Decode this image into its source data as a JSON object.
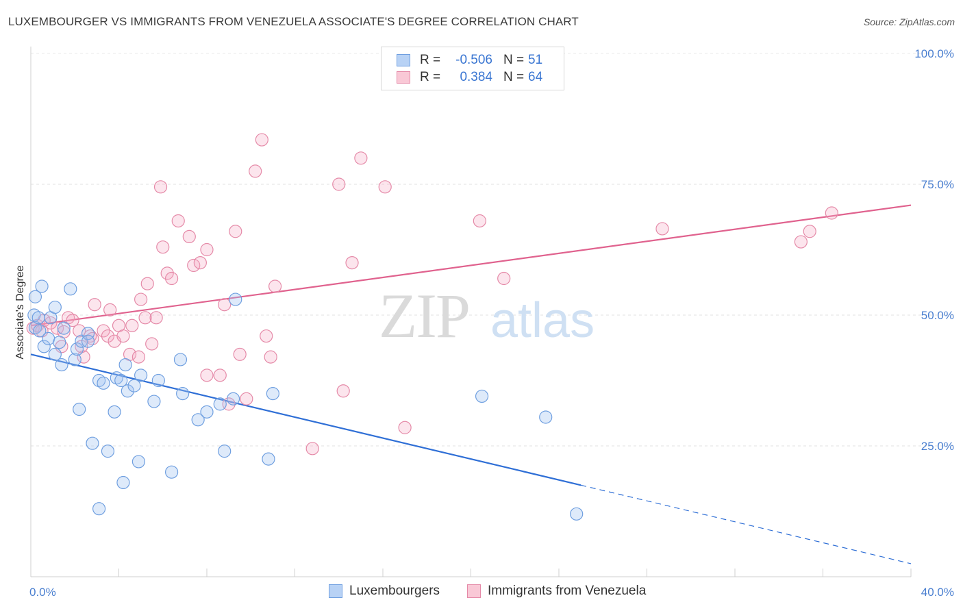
{
  "title": "LUXEMBOURGER VS IMMIGRANTS FROM VENEZUELA ASSOCIATE'S DEGREE CORRELATION CHART",
  "source": "Source: ZipAtlas.com",
  "watermark": {
    "zip": "ZIP",
    "atlas": "atlas"
  },
  "legend": {
    "r_label": "R =",
    "n_label": "N =",
    "rows": [
      {
        "r": "-0.506",
        "n": "51",
        "color": "#a9c8f2",
        "border": "#6f9fe0"
      },
      {
        "r": "0.384",
        "n": "64",
        "color": "#f7bfd0",
        "border": "#e58aa8"
      }
    ]
  },
  "bottom_legend": [
    {
      "label": "Luxembourgers",
      "color": "#b8d2f5",
      "border": "#6f9fe0"
    },
    {
      "label": "Immigrants from Venezuela",
      "color": "#f9c8d6",
      "border": "#e58aa8"
    }
  ],
  "chart_data": {
    "type": "scatter",
    "ylabel": "Associate's Degree",
    "xlim": [
      0,
      40
    ],
    "ylim": [
      0,
      100
    ],
    "x_tick_labels": [
      "0.0%",
      "40.0%"
    ],
    "y_tick_labels": [
      "100.0%",
      "75.0%",
      "50.0%",
      "25.0%"
    ],
    "y_tick_values": [
      100,
      75,
      50,
      25
    ],
    "grid": true,
    "colors": {
      "blue": "#2f6fd6",
      "pink": "#e0628e",
      "blue_fill": "rgba(160,195,240,0.35)",
      "pink_fill": "rgba(245,170,195,0.30)"
    },
    "series": [
      {
        "name": "Luxembourgers",
        "color": "blue",
        "points": [
          [
            0.2,
            47.6
          ],
          [
            0.2,
            53.5
          ],
          [
            0.5,
            55.5
          ],
          [
            0.4,
            47
          ],
          [
            0.6,
            44
          ],
          [
            0.8,
            45.5
          ],
          [
            0.9,
            49.5
          ],
          [
            1.1,
            51.5
          ],
          [
            1.1,
            42.5
          ],
          [
            1.4,
            40.5
          ],
          [
            1.5,
            47.5
          ],
          [
            1.8,
            55
          ],
          [
            2.0,
            41.5
          ],
          [
            2.1,
            43.5
          ],
          [
            2.3,
            45
          ],
          [
            2.6,
            46.5
          ],
          [
            2.6,
            45
          ],
          [
            2.2,
            32
          ],
          [
            2.8,
            25.5
          ],
          [
            3.1,
            37.5
          ],
          [
            3.3,
            37
          ],
          [
            3.5,
            24
          ],
          [
            3.8,
            31.5
          ],
          [
            3.9,
            38
          ],
          [
            4.1,
            37.5
          ],
          [
            4.2,
            18
          ],
          [
            4.3,
            40.5
          ],
          [
            4.4,
            35.5
          ],
          [
            4.7,
            36.5
          ],
          [
            5.0,
            38.5
          ],
          [
            4.9,
            22
          ],
          [
            3.1,
            13
          ],
          [
            5.6,
            33.5
          ],
          [
            5.8,
            37.5
          ],
          [
            6.4,
            20
          ],
          [
            6.8,
            41.5
          ],
          [
            6.9,
            35
          ],
          [
            7.6,
            30
          ],
          [
            8.0,
            31.5
          ],
          [
            8.6,
            33
          ],
          [
            8.8,
            24
          ],
          [
            9.2,
            34
          ],
          [
            9.3,
            53
          ],
          [
            10.8,
            22.5
          ],
          [
            11.0,
            35
          ],
          [
            20.5,
            34.5
          ],
          [
            23.4,
            30.5
          ],
          [
            24.8,
            12
          ],
          [
            0.15,
            50
          ],
          [
            0.35,
            49.5
          ],
          [
            1.3,
            44.8
          ]
        ]
      },
      {
        "name": "Immigrants from Venezuela",
        "color": "pink",
        "points": [
          [
            0.1,
            47.5
          ],
          [
            0.3,
            48
          ],
          [
            0.5,
            47
          ],
          [
            0.9,
            48.5
          ],
          [
            1.2,
            47.5
          ],
          [
            1.4,
            44
          ],
          [
            1.7,
            49.5
          ],
          [
            1.9,
            49
          ],
          [
            2.2,
            47
          ],
          [
            2.3,
            44
          ],
          [
            2.4,
            42
          ],
          [
            2.7,
            46
          ],
          [
            2.8,
            45.5
          ],
          [
            2.9,
            52
          ],
          [
            3.3,
            47
          ],
          [
            3.5,
            46
          ],
          [
            3.6,
            51
          ],
          [
            3.8,
            45
          ],
          [
            4.0,
            48
          ],
          [
            4.2,
            46
          ],
          [
            4.5,
            42.5
          ],
          [
            4.6,
            48
          ],
          [
            4.9,
            42
          ],
          [
            5.0,
            53
          ],
          [
            5.2,
            49.5
          ],
          [
            5.3,
            56
          ],
          [
            5.5,
            44.5
          ],
          [
            5.7,
            49.5
          ],
          [
            5.9,
            74.5
          ],
          [
            6.0,
            63
          ],
          [
            6.2,
            58
          ],
          [
            6.4,
            57
          ],
          [
            6.7,
            68
          ],
          [
            7.2,
            65
          ],
          [
            7.4,
            59.5
          ],
          [
            7.7,
            60
          ],
          [
            8.0,
            38.5
          ],
          [
            8.0,
            62.5
          ],
          [
            8.6,
            38.5
          ],
          [
            8.8,
            52
          ],
          [
            9.0,
            33
          ],
          [
            9.3,
            66
          ],
          [
            9.5,
            42.5
          ],
          [
            9.8,
            34
          ],
          [
            10.2,
            77.5
          ],
          [
            10.5,
            83.5
          ],
          [
            10.7,
            46
          ],
          [
            10.9,
            42
          ],
          [
            11.1,
            55.5
          ],
          [
            12.8,
            24.5
          ],
          [
            14.0,
            75
          ],
          [
            14.2,
            35.5
          ],
          [
            14.6,
            60
          ],
          [
            15.0,
            80
          ],
          [
            16.1,
            74.5
          ],
          [
            17.0,
            28.5
          ],
          [
            20.4,
            68
          ],
          [
            21.5,
            57
          ],
          [
            28.7,
            66.5
          ],
          [
            35.0,
            64
          ],
          [
            35.4,
            66
          ],
          [
            36.4,
            69.5
          ],
          [
            0.6,
            49
          ],
          [
            1.5,
            46.8
          ]
        ]
      }
    ],
    "trend_lines": [
      {
        "series": "Luxembourgers",
        "color": "blue",
        "x1": 0,
        "y1": 42.5,
        "x2": 25,
        "y2": 17.5,
        "dash_x2": 40,
        "dash_y2": 2.5
      },
      {
        "series": "Immigrants from Venezuela",
        "color": "pink",
        "x1": 0,
        "y1": 48,
        "x2": 40,
        "y2": 71
      }
    ]
  }
}
